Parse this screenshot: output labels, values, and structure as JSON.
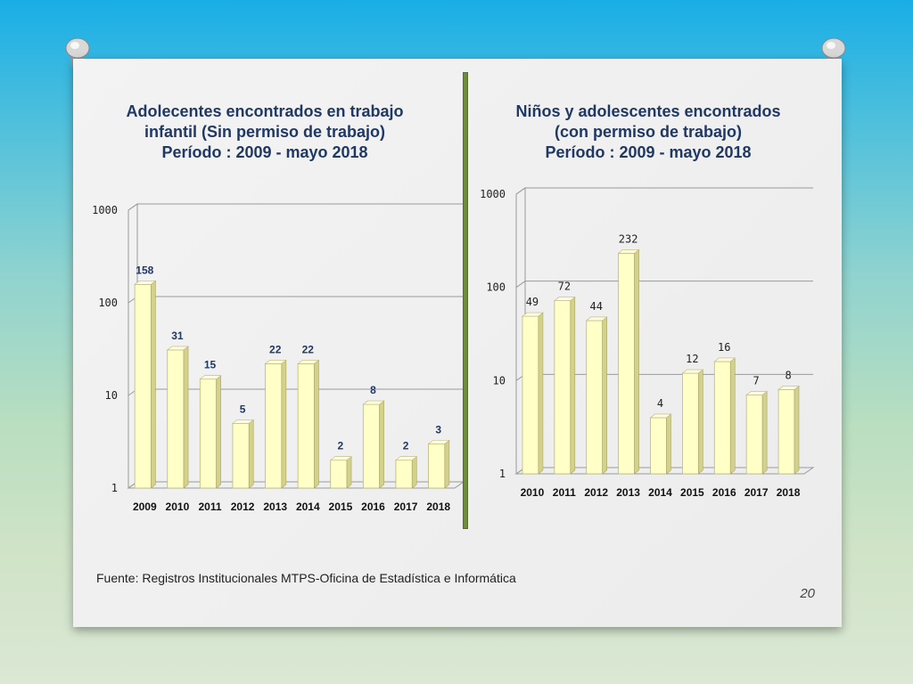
{
  "source_note": "Fuente: Registros Institucionales MTPS-Oficina de Estadística e Informática",
  "page_number": "20",
  "colors": {
    "bar_fill": "#ffffc8",
    "bar_side": "#d4d18a",
    "title": "#1f3864",
    "left_labels": "#1f3864",
    "divider": "#6f8c3e"
  },
  "chart_data": [
    {
      "type": "bar",
      "title_lines": [
        "Adolecentes encontrados en trabajo",
        "infantil (Sin permiso de trabajo)",
        "Período : 2009 - mayo 2018"
      ],
      "categories": [
        "2009",
        "2010",
        "2011",
        "2012",
        "2013",
        "2014",
        "2015",
        "2016",
        "2017",
        "2018"
      ],
      "values": [
        158,
        31,
        15,
        5,
        22,
        22,
        2,
        8,
        2,
        3
      ],
      "scale": "log",
      "ylim": [
        1,
        1000
      ],
      "yticks": [
        "1",
        "10",
        "100",
        "1000"
      ],
      "grid": true
    },
    {
      "type": "bar",
      "title_lines": [
        "Niños y adolescentes encontrados",
        "(con permiso de trabajo)",
        "Período : 2009 - mayo 2018"
      ],
      "categories": [
        "2010",
        "2011",
        "2012",
        "2013",
        "2014",
        "2015",
        "2016",
        "2017",
        "2018"
      ],
      "values": [
        49,
        72,
        44,
        232,
        4,
        12,
        16,
        7,
        8
      ],
      "scale": "log",
      "ylim": [
        1,
        1000
      ],
      "yticks": [
        "1",
        "10",
        "100",
        "1000"
      ],
      "grid": true
    }
  ]
}
